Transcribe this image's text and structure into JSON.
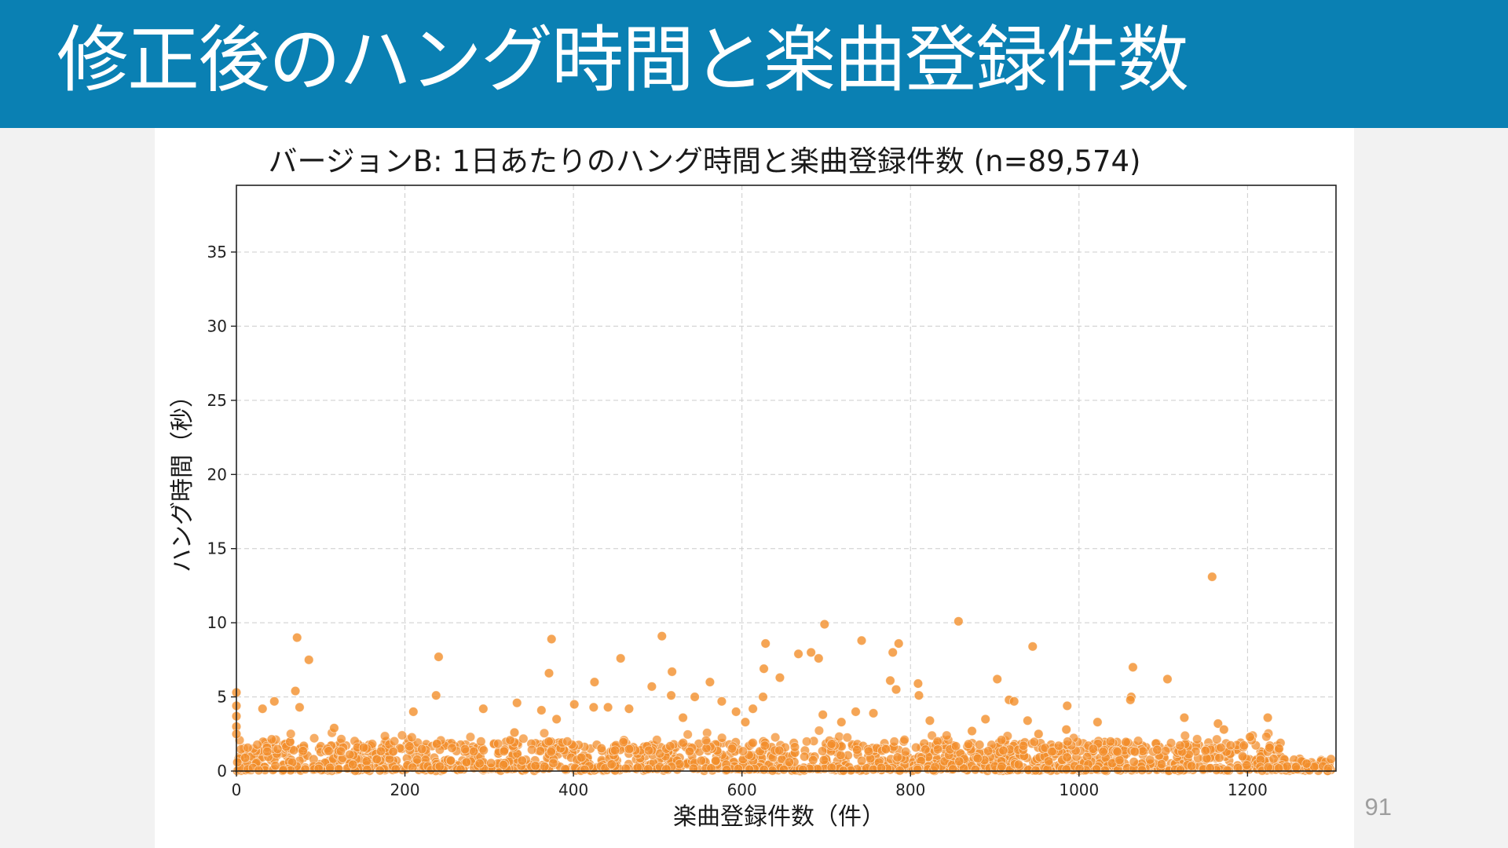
{
  "slide": {
    "title": "修正後のハング時間と楽曲登録件数",
    "page_number": "91"
  },
  "colors": {
    "header_bg": "#0a80b3",
    "point": "#f28e2b",
    "grid": "#cccccc"
  },
  "chart_data": {
    "type": "scatter",
    "title": "バージョンB: 1日あたりのハング時間と楽曲登録件数 (n=89,574)",
    "xlabel": "楽曲登録件数（件）",
    "ylabel": "ハング時間（秒）",
    "xlim": [
      0,
      1305
    ],
    "ylim": [
      0,
      39.5
    ],
    "xticks": [
      0,
      200,
      400,
      600,
      800,
      1000,
      1200
    ],
    "yticks": [
      0,
      5,
      10,
      15,
      20,
      25,
      30,
      35
    ],
    "grid": true,
    "n": 89574,
    "outliers": [
      {
        "x": 1158,
        "y": 13.1
      },
      {
        "x": 857,
        "y": 10.1
      },
      {
        "x": 698,
        "y": 9.9
      },
      {
        "x": 505,
        "y": 9.1
      },
      {
        "x": 72,
        "y": 9.0
      },
      {
        "x": 374,
        "y": 8.9
      },
      {
        "x": 742,
        "y": 8.8
      },
      {
        "x": 628,
        "y": 8.6
      },
      {
        "x": 786,
        "y": 8.6
      },
      {
        "x": 945,
        "y": 8.4
      },
      {
        "x": 682,
        "y": 8.0
      },
      {
        "x": 667,
        "y": 7.9
      },
      {
        "x": 779,
        "y": 8.0
      },
      {
        "x": 691,
        "y": 7.6
      },
      {
        "x": 240,
        "y": 7.7
      },
      {
        "x": 456,
        "y": 7.6
      },
      {
        "x": 86,
        "y": 7.5
      },
      {
        "x": 1064,
        "y": 7.0
      },
      {
        "x": 626,
        "y": 6.9
      },
      {
        "x": 371,
        "y": 6.6
      },
      {
        "x": 517,
        "y": 6.7
      },
      {
        "x": 645,
        "y": 6.3
      },
      {
        "x": 903,
        "y": 6.2
      },
      {
        "x": 1105,
        "y": 6.2
      },
      {
        "x": 776,
        "y": 6.1
      },
      {
        "x": 425,
        "y": 6.0
      },
      {
        "x": 562,
        "y": 6.0
      },
      {
        "x": 809,
        "y": 5.9
      },
      {
        "x": 493,
        "y": 5.7
      },
      {
        "x": 783,
        "y": 5.5
      },
      {
        "x": 70,
        "y": 5.4
      },
      {
        "x": 0,
        "y": 5.3
      },
      {
        "x": 810,
        "y": 5.1
      },
      {
        "x": 1062,
        "y": 5.0
      },
      {
        "x": 237,
        "y": 5.1
      },
      {
        "x": 625,
        "y": 5.0
      },
      {
        "x": 516,
        "y": 5.1
      },
      {
        "x": 544,
        "y": 5.0
      },
      {
        "x": 917,
        "y": 4.8
      },
      {
        "x": 45,
        "y": 4.7
      },
      {
        "x": 576,
        "y": 4.7
      },
      {
        "x": 1061,
        "y": 4.8
      },
      {
        "x": 333,
        "y": 4.6
      },
      {
        "x": 401,
        "y": 4.5
      },
      {
        "x": 986,
        "y": 4.4
      },
      {
        "x": 923,
        "y": 4.7
      },
      {
        "x": 75,
        "y": 4.3
      },
      {
        "x": 31,
        "y": 4.2
      },
      {
        "x": 424,
        "y": 4.3
      },
      {
        "x": 293,
        "y": 4.2
      },
      {
        "x": 441,
        "y": 4.3
      },
      {
        "x": 466,
        "y": 4.2
      },
      {
        "x": 593,
        "y": 4.0
      },
      {
        "x": 613,
        "y": 4.2
      },
      {
        "x": 735,
        "y": 4.0
      },
      {
        "x": 210,
        "y": 4.0
      },
      {
        "x": 362,
        "y": 4.1
      },
      {
        "x": 696,
        "y": 3.8
      },
      {
        "x": 756,
        "y": 3.9
      },
      {
        "x": 1125,
        "y": 3.6
      },
      {
        "x": 1224,
        "y": 3.6
      },
      {
        "x": 380,
        "y": 3.5
      },
      {
        "x": 530,
        "y": 3.6
      },
      {
        "x": 889,
        "y": 3.5
      },
      {
        "x": 823,
        "y": 3.4
      },
      {
        "x": 939,
        "y": 3.4
      },
      {
        "x": 1022,
        "y": 3.3
      },
      {
        "x": 1165,
        "y": 3.2
      },
      {
        "x": 604,
        "y": 3.3
      },
      {
        "x": 718,
        "y": 3.3
      },
      {
        "x": 116,
        "y": 2.9
      },
      {
        "x": 985,
        "y": 2.8
      },
      {
        "x": 1172,
        "y": 2.8
      },
      {
        "x": 330,
        "y": 2.6
      },
      {
        "x": 873,
        "y": 2.7
      },
      {
        "x": 952,
        "y": 2.5
      },
      {
        "x": 0,
        "y": 4.4
      },
      {
        "x": 0,
        "y": 3.7
      },
      {
        "x": 0,
        "y": 3.0
      },
      {
        "x": 0,
        "y": 2.5
      },
      {
        "x": 1203,
        "y": 2.3
      }
    ]
  }
}
